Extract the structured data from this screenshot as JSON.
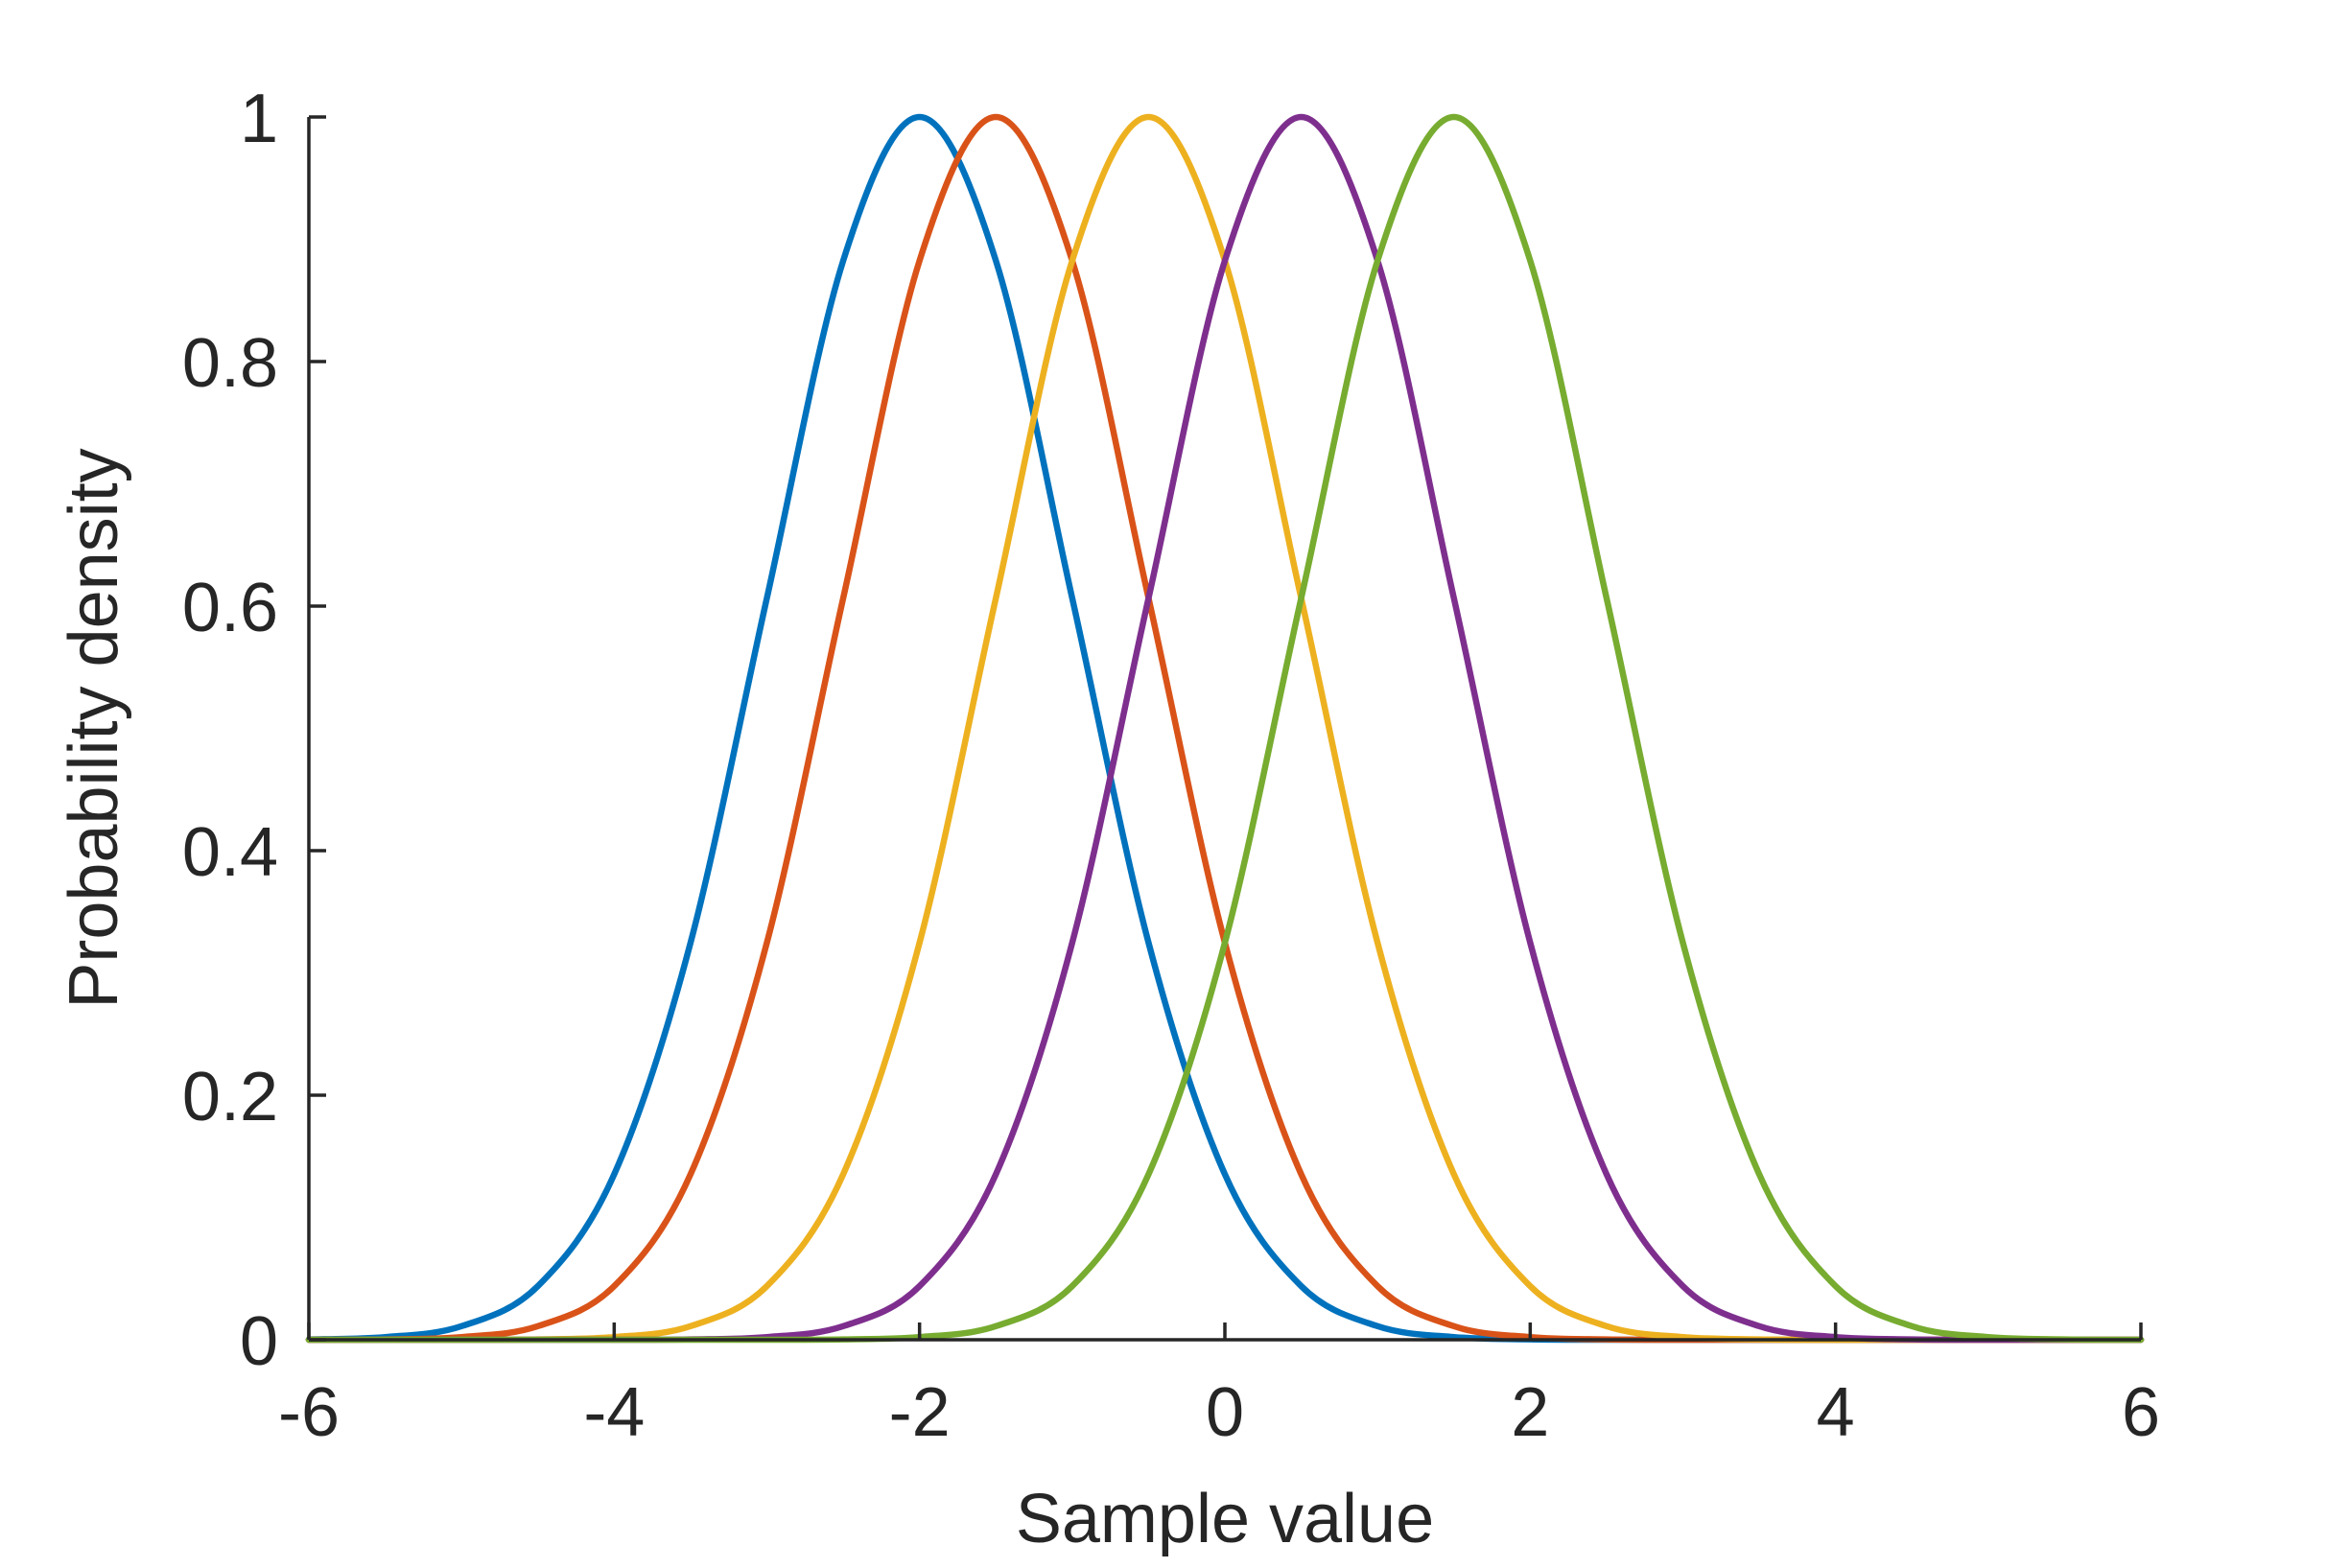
{
  "chart_data": {
    "type": "line",
    "title": "",
    "xlabel": "Sample value",
    "ylabel": "Probability density",
    "xlim": [
      -6,
      6
    ],
    "ylim": [
      0,
      1
    ],
    "xticks": [
      -6,
      -4,
      -2,
      0,
      2,
      4,
      6
    ],
    "yticks": [
      0,
      0.2,
      0.4,
      0.6,
      0.8,
      1
    ],
    "xtick_labels": [
      "-6",
      "-4",
      "-2",
      "0",
      "2",
      "4",
      "6"
    ],
    "ytick_labels": [
      "0",
      "0.2",
      "0.4",
      "0.6",
      "0.8",
      "1"
    ],
    "grid": false,
    "legend": "none",
    "x": [
      -6,
      -5.5,
      -5,
      -4.5,
      -4,
      -3.5,
      -3,
      -2.5,
      -2,
      -1.5,
      -1,
      -0.5,
      0,
      0.5,
      1,
      1.5,
      2,
      2.5,
      3,
      3.5,
      4,
      4.5,
      5,
      5.5,
      6
    ],
    "series": [
      {
        "color": "#0072BD",
        "values": [
          0.0003,
          0.0022,
          0.0111,
          0.0439,
          0.1353,
          0.3247,
          0.6065,
          0.8825,
          1.0,
          0.8825,
          0.6065,
          0.3247,
          0.1353,
          0.0439,
          0.0111,
          0.0022,
          0.0003,
          0.0,
          0.0,
          0.0,
          0.0,
          0.0,
          0.0,
          0.0,
          0.0
        ]
      },
      {
        "color": "#D95319",
        "values": [
          0.0,
          0.0003,
          0.0022,
          0.0111,
          0.0439,
          0.1353,
          0.3247,
          0.6065,
          0.8825,
          1.0,
          0.8825,
          0.6065,
          0.3247,
          0.1353,
          0.0439,
          0.0111,
          0.0022,
          0.0003,
          0.0,
          0.0,
          0.0,
          0.0,
          0.0,
          0.0,
          0.0
        ]
      },
      {
        "color": "#EDB120",
        "values": [
          0.0,
          0.0,
          0.0,
          0.0003,
          0.0022,
          0.0111,
          0.0439,
          0.1353,
          0.3247,
          0.6065,
          0.8825,
          1.0,
          0.8825,
          0.6065,
          0.3247,
          0.1353,
          0.0439,
          0.0111,
          0.0022,
          0.0003,
          0.0,
          0.0,
          0.0,
          0.0,
          0.0
        ]
      },
      {
        "color": "#7E2F8E",
        "values": [
          0.0,
          0.0,
          0.0,
          0.0,
          0.0,
          0.0003,
          0.0022,
          0.0111,
          0.0439,
          0.1353,
          0.3247,
          0.6065,
          0.8825,
          1.0,
          0.8825,
          0.6065,
          0.3247,
          0.1353,
          0.0439,
          0.0111,
          0.0022,
          0.0003,
          0.0,
          0.0,
          0.0
        ]
      },
      {
        "color": "#77AC30",
        "values": [
          0.0,
          0.0,
          0.0,
          0.0,
          0.0,
          0.0,
          0.0,
          0.0003,
          0.0022,
          0.0111,
          0.0439,
          0.1353,
          0.3247,
          0.6065,
          0.8825,
          1.0,
          0.8825,
          0.6065,
          0.3247,
          0.1353,
          0.0439,
          0.0111,
          0.0022,
          0.0003,
          0.0
        ]
      }
    ]
  }
}
